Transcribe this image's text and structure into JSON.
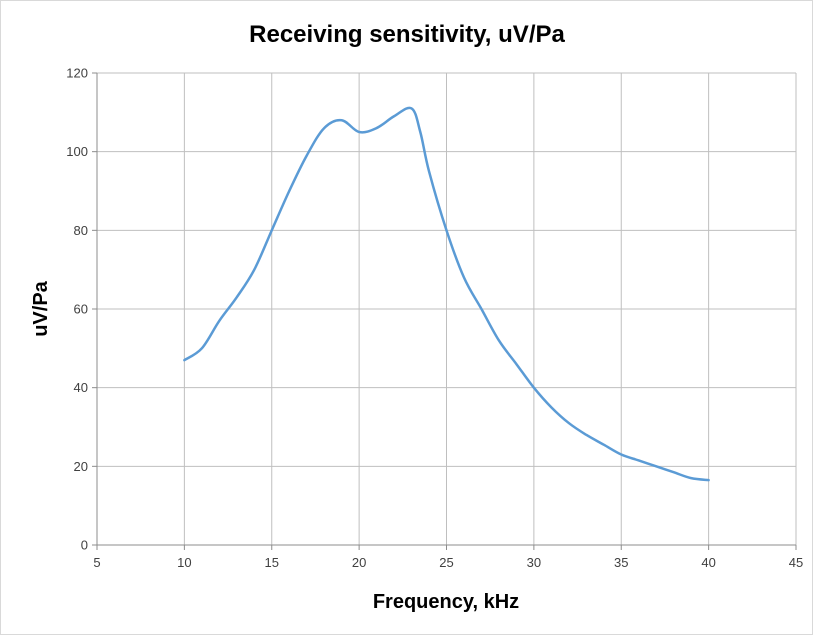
{
  "chart_data": {
    "type": "line",
    "title": "Receiving sensitivity, uV/Pa",
    "xlabel": "Frequency, kHz",
    "ylabel": "uV/Pa",
    "xlim": [
      5,
      45
    ],
    "ylim": [
      0,
      120
    ],
    "x_ticks": [
      5,
      10,
      15,
      20,
      25,
      30,
      35,
      40,
      45
    ],
    "y_ticks": [
      0,
      20,
      40,
      60,
      80,
      100,
      120
    ],
    "grid": true,
    "legend": "none",
    "series": [
      {
        "color": "#5b9bd5",
        "x": [
          10,
          11,
          12,
          13,
          14,
          15,
          16,
          17,
          18,
          19,
          20,
          21,
          22,
          23,
          23.5,
          24,
          25,
          26,
          27,
          28,
          29,
          30,
          31,
          32,
          33,
          34,
          35,
          36,
          37,
          38,
          39,
          40
        ],
        "y": [
          47,
          50,
          57,
          63,
          70,
          80,
          90,
          99,
          106,
          108,
          105,
          106,
          109,
          111,
          105,
          95,
          80,
          68,
          60,
          52,
          46,
          40,
          35,
          31,
          28,
          25.5,
          23,
          21.5,
          20,
          18.5,
          17,
          16.5
        ]
      }
    ]
  }
}
